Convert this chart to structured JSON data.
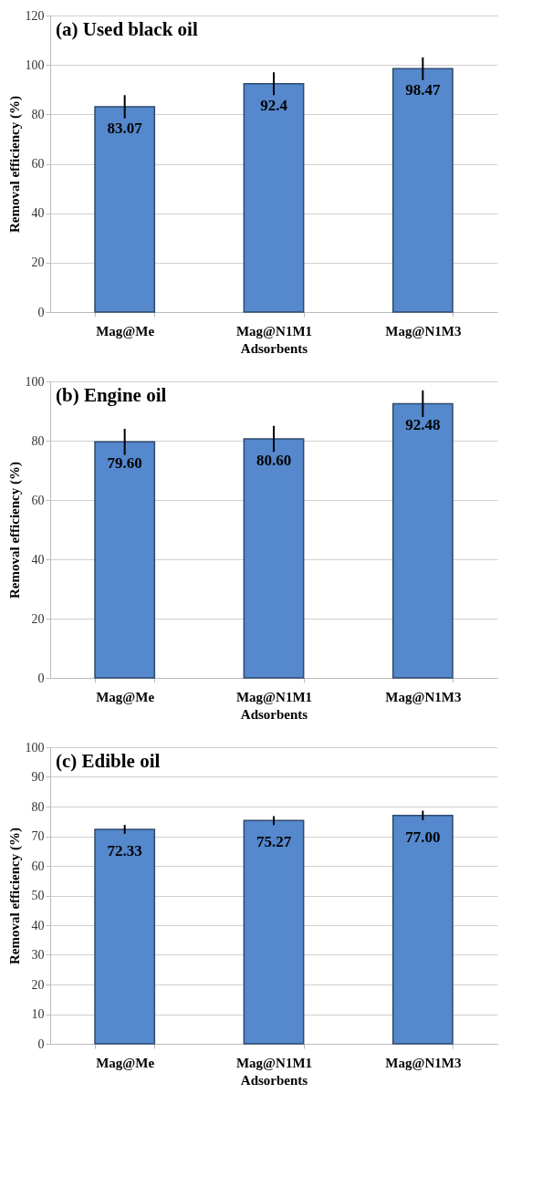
{
  "chart_data": [
    {
      "type": "bar",
      "title": "(a) Used black oil",
      "xlabel": "Adsorbents",
      "ylabel": "Removal efficiency (%)",
      "categories": [
        "Mag@Me",
        "Mag@N1M1",
        "Mag@N1M3"
      ],
      "values": [
        83.07,
        92.4,
        98.47
      ],
      "errors": [
        4.7,
        4.6,
        4.6
      ],
      "value_labels": [
        "83.07",
        "92.4",
        "98.47"
      ],
      "color": "#5588cc",
      "ylim": [
        0,
        120
      ],
      "yticks": [
        0,
        20,
        40,
        60,
        80,
        100,
        120
      ],
      "grid": "y"
    },
    {
      "type": "bar",
      "title": "(b) Engine oil",
      "xlabel": "Adsorbents",
      "ylabel": "Removal efficiency (%)",
      "categories": [
        "Mag@Me",
        "Mag@N1M1",
        "Mag@N1M3"
      ],
      "values": [
        79.6,
        80.6,
        92.48
      ],
      "errors": [
        4.4,
        4.4,
        4.5
      ],
      "value_labels": [
        "79.60",
        "80.60",
        "92.48"
      ],
      "color": "#5588cc",
      "ylim": [
        0,
        100
      ],
      "yticks": [
        0,
        20,
        40,
        60,
        80,
        100
      ],
      "grid": "y"
    },
    {
      "type": "bar",
      "title": "(c) Edible oil",
      "xlabel": "Adsorbents",
      "ylabel": "Removal efficiency (%)",
      "categories": [
        "Mag@Me",
        "Mag@N1M1",
        "Mag@N1M3"
      ],
      "values": [
        72.33,
        75.27,
        77.0
      ],
      "errors": [
        1.5,
        1.5,
        1.6
      ],
      "value_labels": [
        "72.33",
        "75.27",
        "77.00"
      ],
      "color": "#5588cc",
      "ylim": [
        0,
        100
      ],
      "yticks": [
        0,
        10,
        20,
        30,
        40,
        50,
        60,
        70,
        80,
        90,
        100
      ],
      "grid": "y"
    }
  ]
}
